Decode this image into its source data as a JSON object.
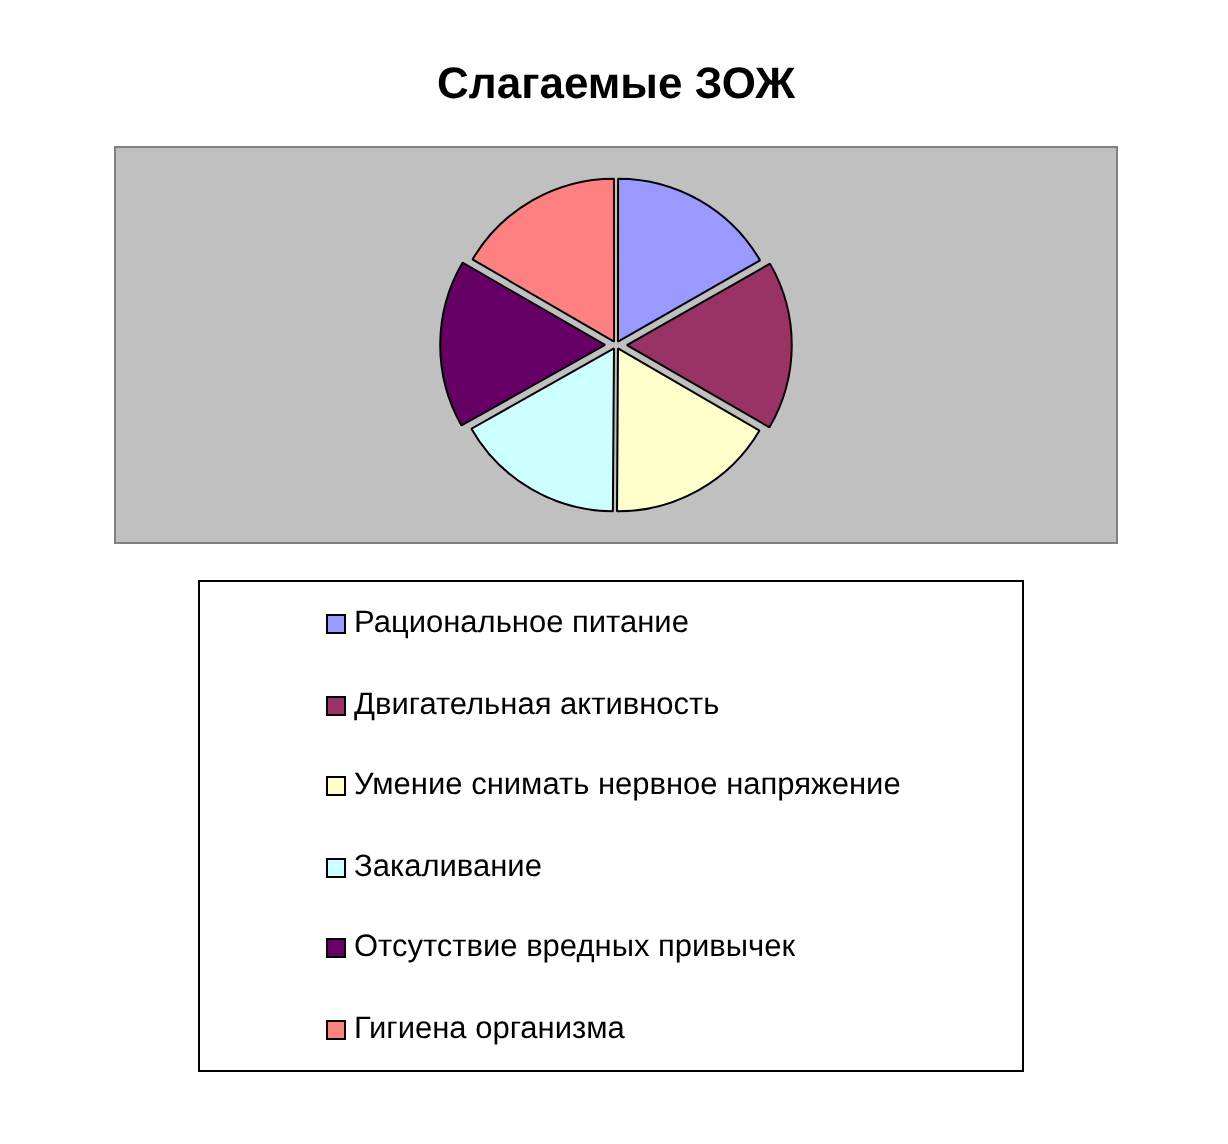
{
  "chart_data": {
    "type": "pie",
    "title": "Слагаемые ЗОЖ",
    "categories": [
      "Рациональное питание",
      "Двигательная активность",
      "Умение снимать нервное напряжение",
      "Закаливание",
      "Отсутствие вредных привычек",
      "Гигиена организма"
    ],
    "values": [
      16.7,
      16.7,
      16.7,
      16.7,
      16.6,
      16.6
    ],
    "colors": [
      "#9999ff",
      "#993366",
      "#ffffcc",
      "#ccffff",
      "#660066",
      "#ff8080"
    ],
    "legend": "bottom"
  }
}
